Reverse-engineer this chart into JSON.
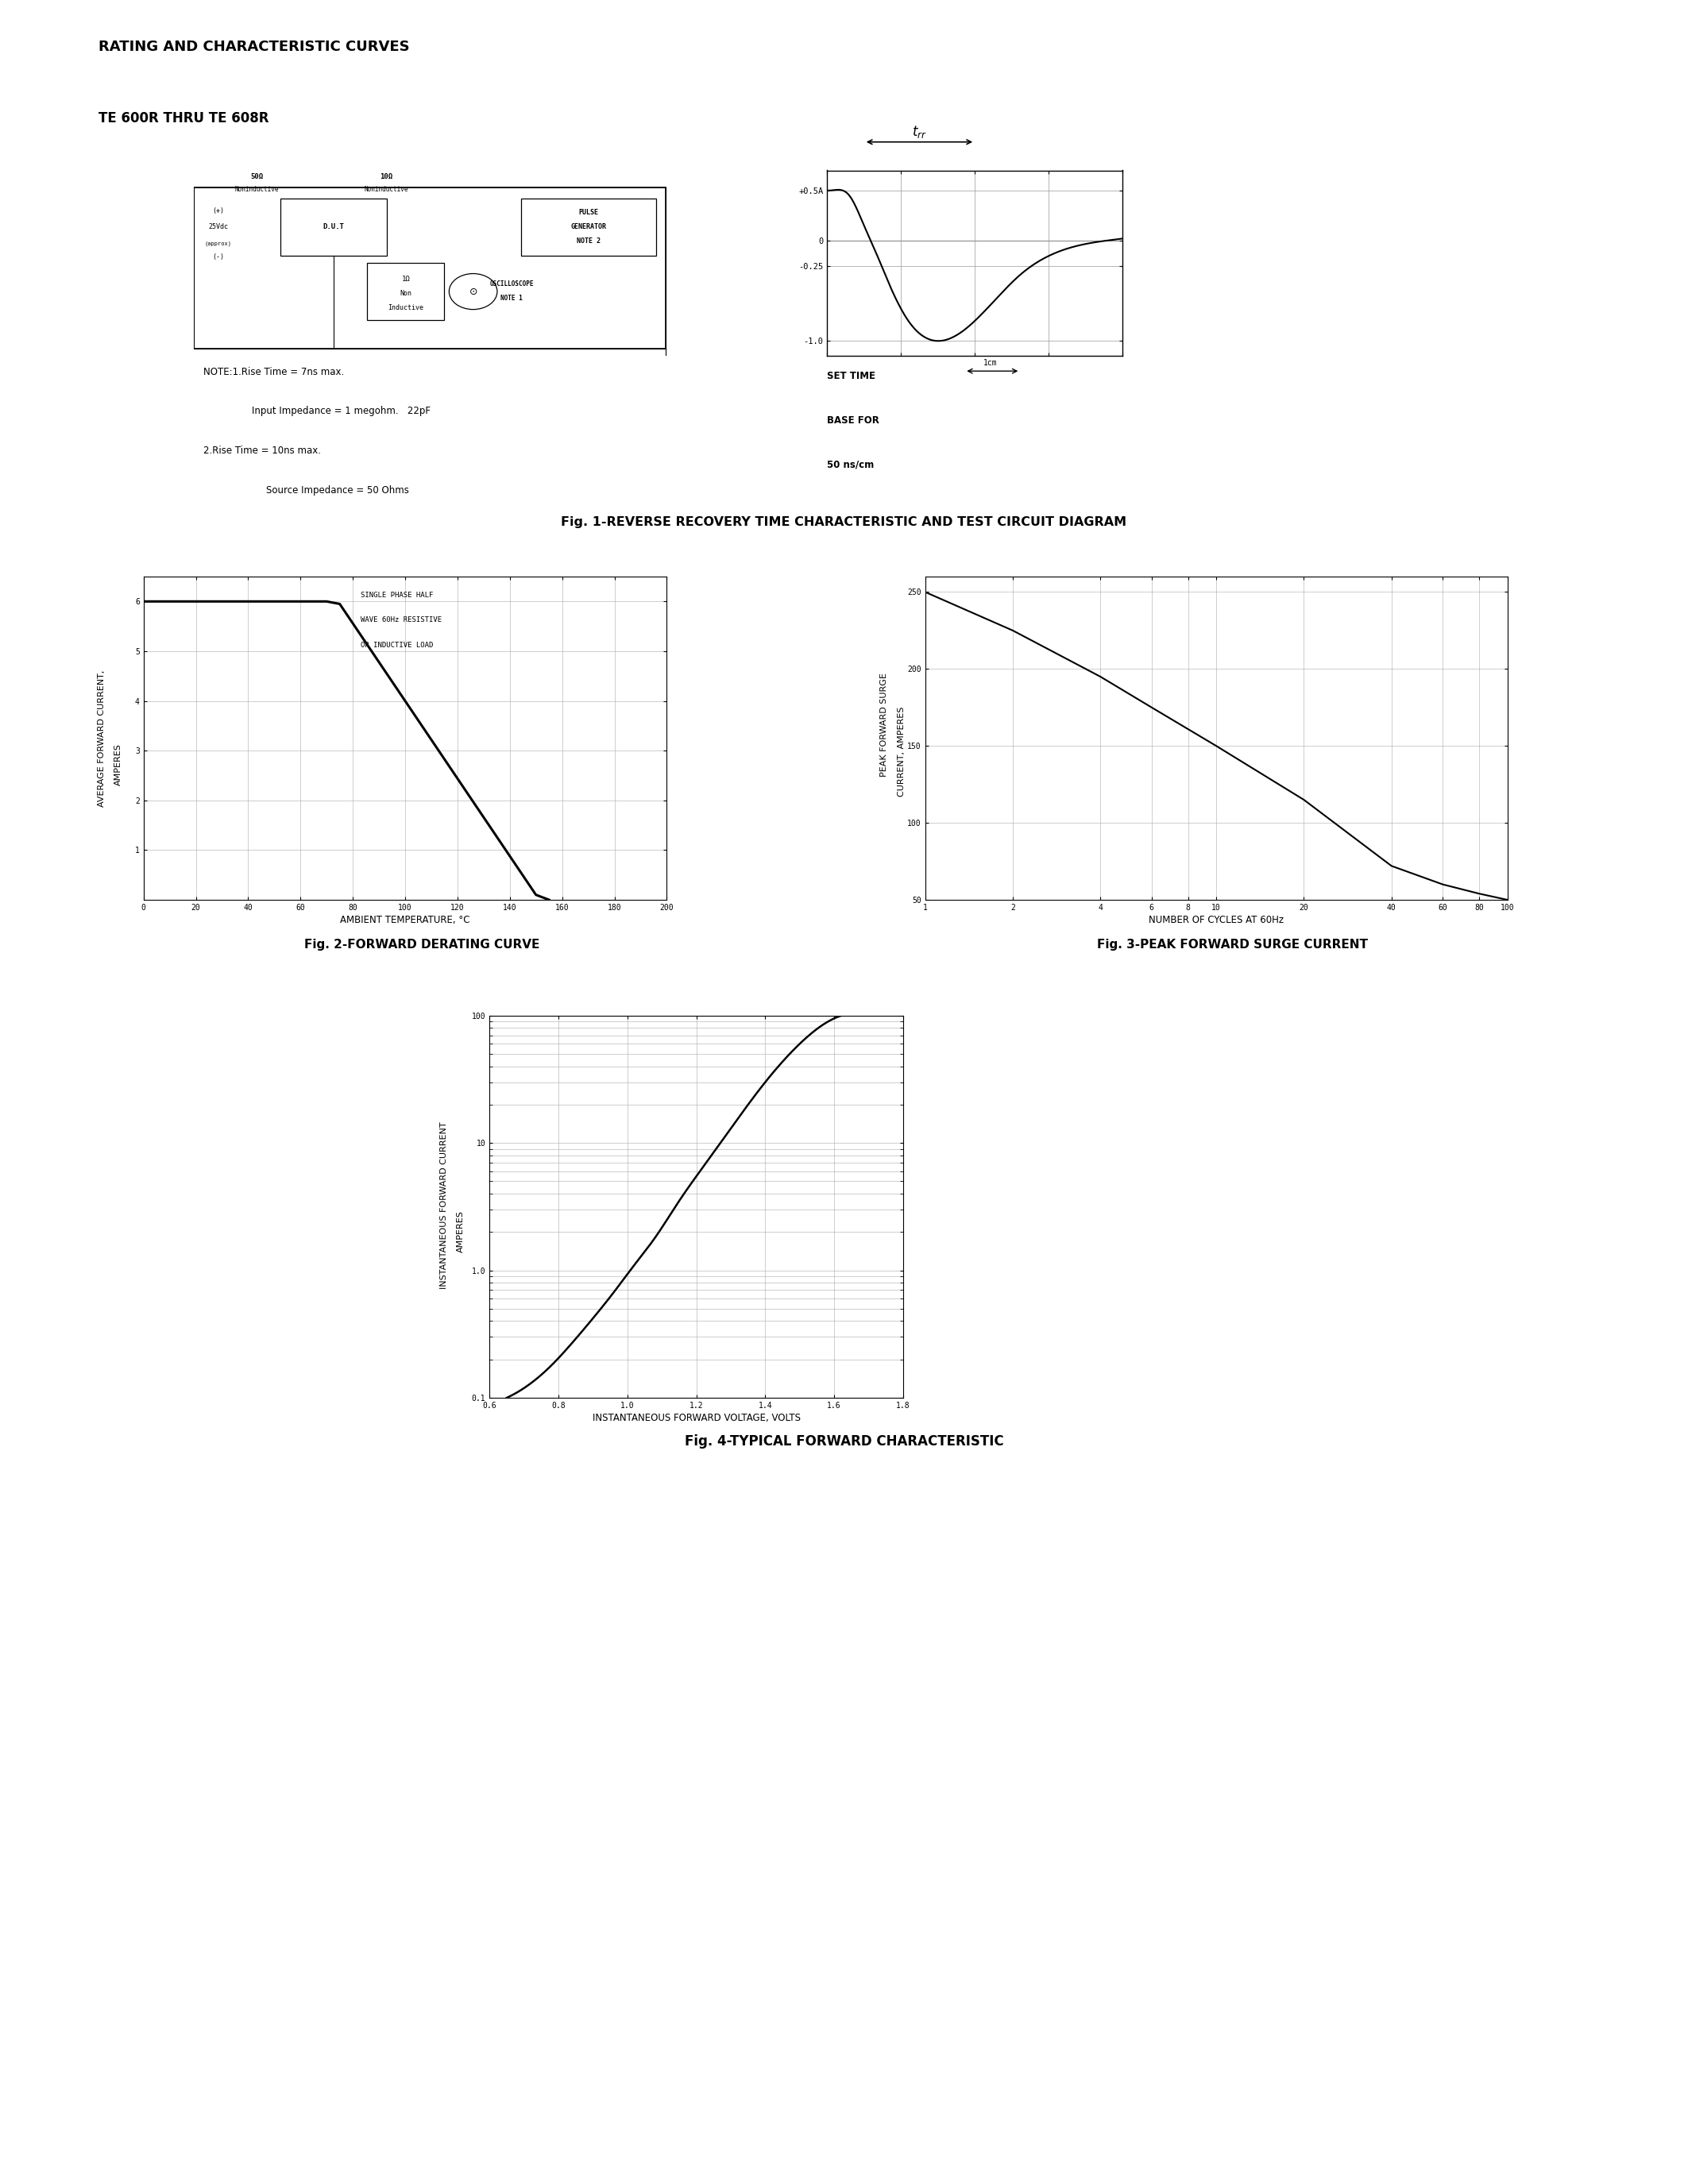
{
  "page_title": "RATING AND CHARACTERISTIC CURVES",
  "page_subtitle": "TE 600R THRU TE 608R",
  "fig1_title": "Fig. 1-REVERSE RECOVERY TIME CHARACTERISTIC AND TEST CIRCUIT DIAGRAM",
  "fig2_title": "Fig. 2-FORWARD DERATING CURVE",
  "fig3_title": "Fig. 3-PEAK FORWARD SURGE CURRENT",
  "fig4_title": "Fig. 4-TYPICAL FORWARD CHARACTERISTIC",
  "fig2_xlabel": "AMBIENT TEMPERATURE, °C",
  "fig2_ylabel1": "AVERAGE FORWARD CURRENT,",
  "fig2_ylabel2": "AMPERES",
  "fig2_legend": [
    "SINGLE PHASE HALF",
    "WAVE 60Hz RESISTIVE",
    "OR INDUCTIVE LOAD"
  ],
  "fig2_xticks": [
    0,
    20,
    40,
    60,
    80,
    100,
    120,
    140,
    160,
    180,
    200
  ],
  "fig2_yticks": [
    1,
    2,
    3,
    4,
    5,
    6
  ],
  "fig2_xlim": [
    0,
    200
  ],
  "fig2_ylim": [
    0,
    6.5
  ],
  "fig2_curve_x": [
    0,
    70,
    75,
    150,
    155
  ],
  "fig2_curve_y": [
    6.0,
    6.0,
    5.95,
    0.1,
    0.0
  ],
  "fig3_xlabel": "NUMBER OF CYCLES AT 60Hz",
  "fig3_ylabel1": "PEAK FORWARD SURGE",
  "fig3_ylabel2": "CURRENT, AMPERES",
  "fig3_xticks_labels": [
    "1",
    "2",
    "4",
    "6",
    "8",
    "10",
    "20",
    "40",
    "60",
    "80",
    "100"
  ],
  "fig3_xticks_vals": [
    1,
    2,
    4,
    6,
    8,
    10,
    20,
    40,
    60,
    80,
    100
  ],
  "fig3_yticks": [
    50,
    100,
    150,
    200,
    250
  ],
  "fig3_xlim": [
    1,
    100
  ],
  "fig3_ylim": [
    50,
    260
  ],
  "fig3_curve_x": [
    1,
    2,
    4,
    6,
    10,
    20,
    40,
    60,
    80,
    100
  ],
  "fig3_curve_y": [
    250,
    225,
    195,
    175,
    150,
    115,
    72,
    60,
    54,
    50
  ],
  "fig4_xlabel": "INSTANTANEOUS FORWARD VOLTAGE, VOLTS",
  "fig4_ylabel1": "INSTANTANEOUS FORWARD CURRENT",
  "fig4_ylabel2": "AMPERES",
  "fig4_xticks": [
    0.6,
    0.8,
    1.0,
    1.2,
    1.4,
    1.6,
    1.8
  ],
  "fig4_xlim": [
    0.6,
    1.8
  ],
  "fig4_ylim": [
    0.1,
    100
  ],
  "fig4_curve_x": [
    0.65,
    0.72,
    0.78,
    0.84,
    0.9,
    0.96,
    1.02,
    1.08,
    1.15,
    1.22,
    1.3,
    1.4,
    1.5,
    1.6,
    1.7
  ],
  "fig4_curve_y": [
    0.1,
    0.13,
    0.18,
    0.27,
    0.42,
    0.67,
    1.1,
    1.8,
    3.5,
    6.5,
    13.0,
    30.0,
    60.0,
    95.0,
    100.0
  ],
  "note1_line1": "NOTE:1.Rise Time = 7ns max.",
  "note1_line2": "Input Impedance = 1 megohm.   22pF",
  "note1_line3": "2.Rise Time = 10ns max.",
  "note1_line4": "Source Impedance = 50 Ohms",
  "set_time_text": "SET TIME",
  "base_for_text": "BASE FOR",
  "ns_cm_text": "50 ns/cm",
  "bg_color": "#ffffff",
  "line_color": "#000000",
  "grid_color": "#aaaaaa",
  "font_family": "DejaVu Sans"
}
